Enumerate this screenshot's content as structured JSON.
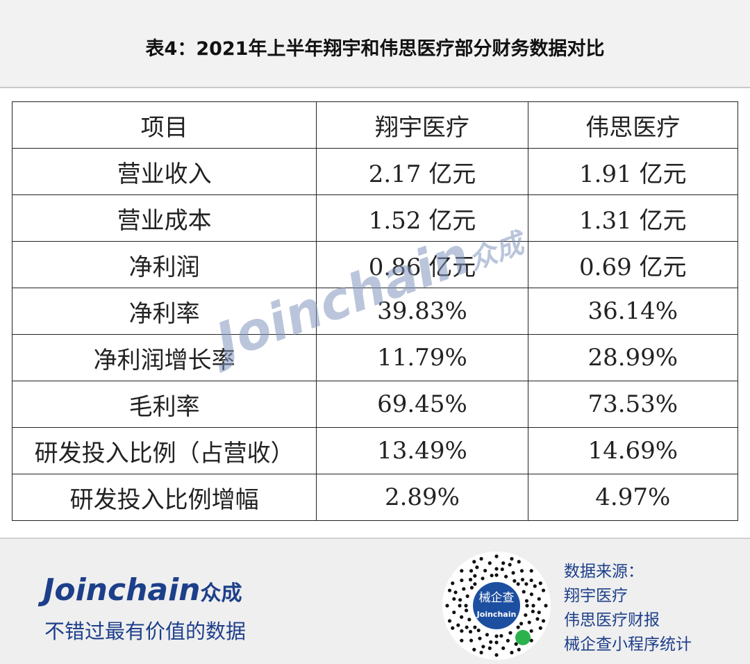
{
  "header": {
    "title": "表4：2021年上半年翔宇和伟思医疗部分财务数据对比"
  },
  "table": {
    "columns": [
      "项目",
      "翔宇医疗",
      "伟思医疗"
    ],
    "rows": [
      [
        "营业收入",
        "2.17 亿元",
        "1.91 亿元"
      ],
      [
        "营业成本",
        "1.52 亿元",
        "1.31 亿元"
      ],
      [
        "净利润",
        "0.86 亿元",
        "0.69 亿元"
      ],
      [
        "净利率",
        "39.83%",
        "36.14%"
      ],
      [
        "净利润增长率",
        "11.79%",
        "28.99%"
      ],
      [
        "毛利率",
        "69.45%",
        "73.53%"
      ],
      [
        "研发投入比例（占营收）",
        "13.49%",
        "14.69%"
      ],
      [
        "研发投入比例增幅",
        "2.89%",
        "4.97%"
      ]
    ]
  },
  "watermark": {
    "brand": "Joinchain",
    "mark": "众成"
  },
  "footer": {
    "logo": "Joinchain",
    "logo_cn": "众成",
    "tagline": "不错过最有价值的数据",
    "qr_label": "械企查",
    "qr_brand": "Joinchain",
    "source": [
      "数据来源：",
      "翔宇医疗",
      "伟思医疗财报",
      "械企查小程序统计"
    ]
  }
}
